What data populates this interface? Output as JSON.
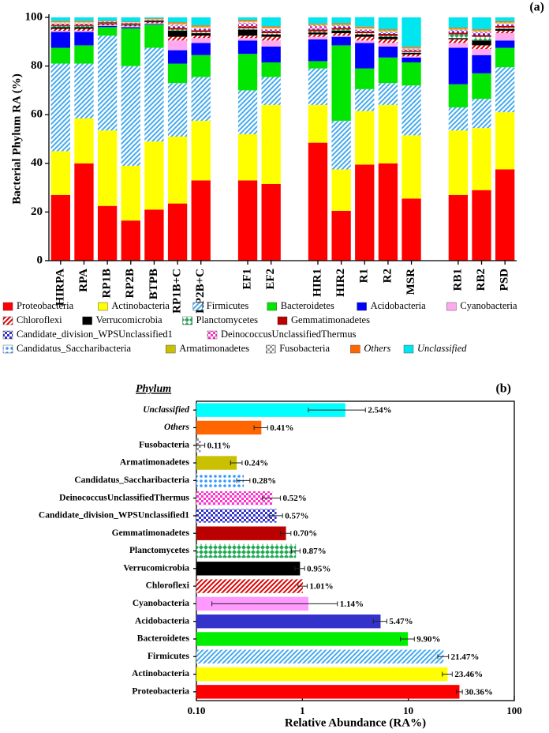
{
  "chart_data": [
    {
      "type": "stacked_bar",
      "annotation": "(a)",
      "ylabel": "Bacterial Phylum RA (%)",
      "categories": [
        "HIRPA",
        "RPA",
        "RP1B",
        "RP2B",
        "BTPB",
        "RP1B+C",
        "RP2B+C",
        null,
        "EF1",
        "EF2",
        null,
        "HIR1",
        "HIR2",
        "R1",
        "R2",
        "MSR",
        null,
        "RB1",
        "RB2",
        "PSD"
      ],
      "ylim": [
        0,
        100
      ],
      "yticks": [
        0,
        20,
        40,
        60,
        80,
        100
      ],
      "series": [
        {
          "name": "Proteobacteria",
          "color": "#ff0000",
          "values": [
            27,
            40,
            22.5,
            16.5,
            21,
            23.5,
            33,
            null,
            33,
            31.5,
            null,
            48.5,
            20.5,
            39.5,
            40,
            25.5,
            null,
            27,
            29,
            37.5
          ]
        },
        {
          "name": "Actinobacteria",
          "color": "#ffff00",
          "values": [
            18,
            18.5,
            31,
            22.5,
            28,
            27.5,
            24.5,
            null,
            19,
            32.5,
            null,
            15.5,
            17,
            22,
            24,
            26,
            null,
            26.5,
            25.5,
            23.5
          ]
        },
        {
          "name": "Firmicutes",
          "color": "#44aaee",
          "pattern": "stripes",
          "values": [
            36,
            22.5,
            39,
            41,
            38.5,
            22,
            18,
            null,
            18,
            11.5,
            null,
            15,
            20,
            9,
            9,
            20.5,
            null,
            9.5,
            12,
            18.5
          ]
        },
        {
          "name": "Bacteroidetes",
          "color": "#00e600",
          "values": [
            6.5,
            7.5,
            3.5,
            15.5,
            9.5,
            8,
            9,
            null,
            15,
            6,
            null,
            3,
            31,
            8.5,
            10.5,
            9.5,
            null,
            9.5,
            10.5,
            8
          ]
        },
        {
          "name": "Acidobacteria",
          "color": "#0000ff",
          "values": [
            6.5,
            5.5,
            0.5,
            0.5,
            0.3,
            5.5,
            5,
            null,
            5.5,
            6.5,
            null,
            9,
            3.5,
            10.5,
            4.5,
            2,
            null,
            15,
            7.5,
            3
          ]
        },
        {
          "name": "Cyanobacteria",
          "color": "#ffaaf0",
          "values": [
            0.5,
            0.5,
            0.3,
            0.3,
            0.3,
            4,
            2,
            null,
            1,
            2.5,
            null,
            1,
            0.5,
            1,
            1.5,
            0.5,
            null,
            2,
            2.5,
            3
          ]
        },
        {
          "name": "Chloroflexi",
          "color": "#dd0000",
          "pattern": "stripes",
          "values": [
            0.8,
            0.8,
            0.4,
            0.4,
            0.4,
            1.5,
            1,
            null,
            1,
            1.5,
            null,
            1,
            1,
            1.5,
            1.5,
            0.8,
            null,
            1.5,
            1.5,
            1
          ]
        },
        {
          "name": "Verrucomicrobia",
          "color": "#000000",
          "values": [
            0.7,
            0.7,
            0.4,
            0.4,
            0.4,
            2.5,
            1,
            null,
            2.5,
            1,
            null,
            0.8,
            1,
            1,
            1,
            0.7,
            null,
            0.5,
            2,
            0.8
          ]
        },
        {
          "name": "Planctomycetes",
          "color": "#22aa55",
          "pattern": "diamonds",
          "values": [
            0.5,
            0.5,
            0.2,
            0.2,
            0.2,
            0.5,
            0.5,
            null,
            0.5,
            0.5,
            null,
            0.5,
            0.5,
            0.5,
            0.5,
            0.3,
            null,
            1.5,
            1.5,
            0.5
          ]
        },
        {
          "name": "Gemmatimonadetes",
          "color": "#bb0000",
          "values": [
            0.5,
            0.5,
            0.3,
            0.3,
            0.3,
            0.7,
            0.7,
            null,
            0.8,
            0.8,
            null,
            0.7,
            0.7,
            0.7,
            0.7,
            0.5,
            null,
            0.7,
            0.7,
            0.7
          ]
        },
        {
          "name": "Candidate_division_WPSUnclassified1",
          "color": "#3333cc",
          "pattern": "checks",
          "values": [
            0.3,
            0.3,
            0.1,
            0.1,
            0.1,
            0.5,
            0.4,
            null,
            0.4,
            0.4,
            null,
            0.4,
            0.4,
            0.4,
            0.4,
            0.3,
            null,
            0.5,
            0.7,
            0.4
          ]
        },
        {
          "name": "DeinococcusUnclassifiedThermus",
          "color": "#ff33cc",
          "pattern": "checks",
          "values": [
            0.3,
            0.3,
            0.1,
            0.1,
            0.1,
            0.5,
            0.4,
            null,
            1,
            0.4,
            null,
            1,
            0.3,
            0.4,
            0.3,
            0.3,
            null,
            0.4,
            0.5,
            0.3
          ]
        },
        {
          "name": "Candidatus_Saccharibacteria",
          "color": "#3399ff",
          "pattern": "dots",
          "values": [
            0.2,
            0.2,
            0.1,
            0.1,
            0.1,
            0.4,
            0.3,
            null,
            0.3,
            0.3,
            null,
            0.3,
            0.3,
            0.3,
            0.3,
            0.2,
            null,
            0.3,
            0.3,
            0.3
          ]
        },
        {
          "name": "Armatimonadetes",
          "color": "#c8c000",
          "values": [
            0.2,
            0.2,
            0.1,
            0.1,
            0.1,
            0.3,
            0.3,
            null,
            0.3,
            0.3,
            null,
            0.3,
            0.3,
            0.3,
            0.3,
            0.2,
            null,
            0.3,
            0.3,
            0.3
          ]
        },
        {
          "name": "Fusobacteria",
          "color": "#999999",
          "pattern": "checks",
          "values": [
            0.1,
            0.1,
            0,
            0,
            0,
            0.1,
            0.1,
            null,
            0.1,
            0.1,
            null,
            0.1,
            0.1,
            0.1,
            0.1,
            0.1,
            null,
            0.1,
            0.1,
            0.1
          ]
        },
        {
          "name": "Others",
          "color": "#ff6600",
          "values": [
            0.4,
            0.4,
            0.2,
            0.2,
            0.2,
            0.5,
            0.5,
            null,
            0.5,
            0.5,
            null,
            0.4,
            0.5,
            0.5,
            0.5,
            0.5,
            null,
            0.5,
            0.5,
            0.5
          ]
        },
        {
          "name": "Unclassified",
          "color": "#00e5ee",
          "values": [
            1.5,
            1.5,
            1.3,
            1.8,
            0.5,
            2,
            3.3,
            null,
            1.1,
            3.7,
            null,
            2.5,
            2.4,
            3.9,
            4.9,
            12.1,
            null,
            4.2,
            4.9,
            1.6
          ]
        }
      ]
    },
    {
      "type": "hbar",
      "annotation": "(b)",
      "title": "Phylum",
      "xlabel": "Relative Abundance (RA%)",
      "log": true,
      "xlim": [
        0.1,
        100
      ],
      "xticks": [
        {
          "value": 0.1,
          "label": "0.10"
        },
        1,
        10,
        100
      ],
      "categories": [
        "Unclassified",
        "Others",
        "Fusobacteria",
        "Armatimonadetes",
        "Candidatus_Saccharibacteria",
        "DeinococcusUnclassifiedThermus",
        "Candidate_division_WPSUnclassified1",
        "Gemmatimonadetes",
        "Planctomycetes",
        "Verrucomicrobia",
        "Chloroflexi",
        "Cyanobacteria",
        "Acidobacteria",
        "Bacteroidetes",
        "Firmicutes",
        "Actinobacteria",
        "Proteobacteria"
      ],
      "values": [
        2.54,
        0.41,
        0.11,
        0.24,
        0.28,
        0.52,
        0.57,
        0.7,
        0.87,
        0.95,
        1.01,
        1.14,
        5.47,
        9.9,
        21.47,
        23.46,
        30.36
      ],
      "value_labels": [
        "2.54%",
        "0.41%",
        "0.11%",
        "0.24%",
        "0.28%",
        "0.52%",
        "0.57%",
        "0.70%",
        "0.87%",
        "0.95%",
        "1.01%",
        "1.14%",
        "5.47%",
        "9.90%",
        "21.47%",
        "23.46%",
        "30.36%"
      ],
      "errors": [
        1.4,
        0.06,
        0.01,
        0.03,
        0.04,
        0.1,
        0.08,
        0.08,
        0.08,
        0.1,
        0.1,
        1.0,
        0.8,
        1.5,
        2.5,
        2.5,
        2
      ],
      "colors": [
        "#00ffff",
        "#ff6600",
        "#999999",
        "#c8c000",
        "#3399ff",
        "#ff33cc",
        "#3333cc",
        "#bb0000",
        "#22aa55",
        "#000000",
        "#dd0000",
        "#ff99ff",
        "#3333cc",
        "#00ee00",
        "#44aaee",
        "#ffff00",
        "#ff0000"
      ],
      "patterns": [
        null,
        null,
        "checks",
        null,
        "dots",
        "checks",
        "checks",
        null,
        "diamonds",
        null,
        "stripes",
        null,
        null,
        null,
        "stripes",
        null,
        null
      ]
    }
  ]
}
